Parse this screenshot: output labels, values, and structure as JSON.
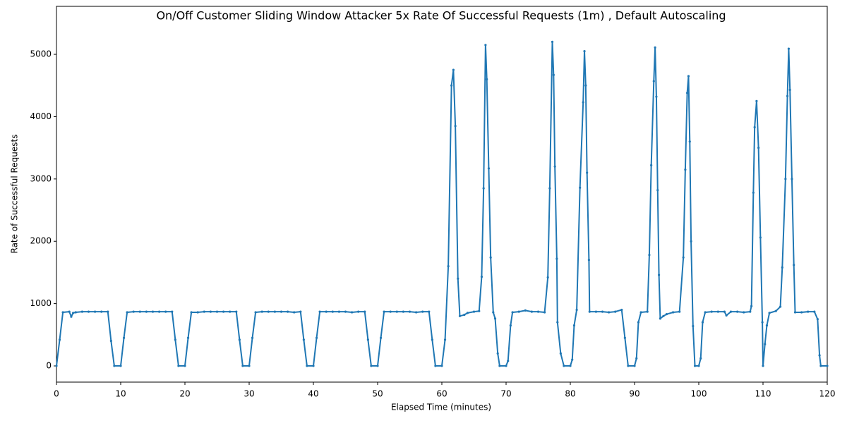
{
  "chart_data": {
    "type": "line",
    "title": "On/Off Customer Sliding Window Attacker 5x Rate Of Successful Requests (1m) , Default Autoscaling",
    "xlabel": "Elapsed Time (minutes)",
    "ylabel": "Rate of Successful Requests",
    "xlim": [
      0,
      120
    ],
    "ylim": [
      -260,
      5770
    ],
    "xticks": [
      0,
      10,
      20,
      30,
      40,
      50,
      60,
      70,
      80,
      90,
      100,
      110,
      120
    ],
    "yticks": [
      0,
      1000,
      2000,
      3000,
      4000,
      5000
    ],
    "series": [
      {
        "color": "#1f77b4",
        "x": [
          0,
          0.5,
          1,
          2,
          2.3,
          2.6,
          3,
          4,
          5,
          6,
          7,
          8,
          8.5,
          9,
          10,
          10.5,
          11,
          12,
          13,
          14,
          15,
          16,
          17,
          18,
          18.5,
          19,
          20,
          20.5,
          21,
          22,
          23,
          24,
          25,
          26,
          27,
          28,
          28.5,
          29,
          30,
          30.5,
          31,
          32,
          33,
          34,
          35,
          36,
          37,
          38,
          38.5,
          39,
          40,
          40.5,
          41,
          42,
          43,
          44,
          45,
          46,
          47,
          48,
          48.5,
          49,
          50,
          50.5,
          51,
          52,
          53,
          54,
          55,
          56,
          57,
          58,
          58.5,
          59,
          60,
          60.5,
          61,
          61.5,
          61.8,
          62.1,
          62.5,
          62.8,
          63.5,
          64,
          65,
          65.8,
          66.2,
          66.5,
          66.8,
          67,
          67.3,
          67.6,
          68,
          68.3,
          68.7,
          69,
          70,
          70.3,
          70.7,
          71,
          72,
          73,
          74,
          75,
          76,
          76.5,
          76.8,
          77.2,
          77.4,
          77.6,
          77.9,
          78,
          78.5,
          79,
          80,
          80.3,
          80.6,
          81,
          81.5,
          82,
          82.2,
          82.4,
          82.6,
          82.9,
          83,
          84,
          85,
          86,
          87,
          88,
          88.5,
          89,
          90,
          90.3,
          90.6,
          91,
          92,
          92.3,
          92.6,
          93,
          93.2,
          93.4,
          93.6,
          93.8,
          94,
          94.5,
          95,
          96,
          97,
          97.6,
          97.9,
          98.2,
          98.4,
          98.6,
          98.8,
          99.1,
          99.4,
          100,
          100.3,
          100.6,
          101,
          102,
          103,
          104,
          104.3,
          105,
          106,
          107,
          108,
          108.2,
          108.5,
          108.7,
          109,
          109.3,
          109.6,
          109.9,
          110,
          110.3,
          110.6,
          111,
          112,
          112.7,
          113,
          113.5,
          113.8,
          114,
          114.2,
          114.5,
          114.8,
          115,
          116,
          117,
          118,
          118.5,
          118.8,
          119,
          120
        ],
        "values": [
          0,
          420,
          860,
          870,
          790,
          850,
          860,
          870,
          870,
          870,
          870,
          870,
          400,
          0,
          0,
          450,
          860,
          870,
          870,
          870,
          870,
          870,
          870,
          870,
          420,
          0,
          0,
          450,
          860,
          860,
          870,
          870,
          870,
          870,
          870,
          870,
          420,
          0,
          0,
          450,
          860,
          870,
          870,
          870,
          870,
          870,
          860,
          870,
          420,
          0,
          0,
          450,
          870,
          870,
          870,
          870,
          870,
          860,
          870,
          870,
          420,
          0,
          0,
          450,
          870,
          870,
          870,
          870,
          870,
          860,
          870,
          870,
          420,
          0,
          0,
          420,
          1600,
          4500,
          4750,
          3850,
          1400,
          800,
          820,
          850,
          870,
          880,
          1430,
          2850,
          5150,
          4600,
          3170,
          1740,
          860,
          760,
          200,
          0,
          0,
          80,
          650,
          860,
          870,
          890,
          870,
          870,
          860,
          1420,
          2850,
          5200,
          4670,
          3200,
          1720,
          700,
          200,
          0,
          0,
          100,
          650,
          900,
          2860,
          4230,
          5050,
          4500,
          3100,
          1700,
          870,
          870,
          870,
          860,
          870,
          900,
          450,
          0,
          0,
          120,
          700,
          860,
          870,
          1780,
          3220,
          4570,
          5110,
          4320,
          2820,
          1460,
          760,
          800,
          830,
          860,
          870,
          1740,
          3150,
          4380,
          4650,
          3600,
          2000,
          640,
          0,
          0,
          120,
          700,
          860,
          870,
          870,
          870,
          810,
          870,
          870,
          860,
          870,
          960,
          2780,
          3830,
          4250,
          3500,
          2060,
          700,
          0,
          350,
          650,
          850,
          880,
          950,
          1580,
          3000,
          4330,
          5090,
          4430,
          3000,
          1620,
          860,
          860,
          870,
          870,
          750,
          170,
          0,
          0
        ]
      }
    ]
  }
}
